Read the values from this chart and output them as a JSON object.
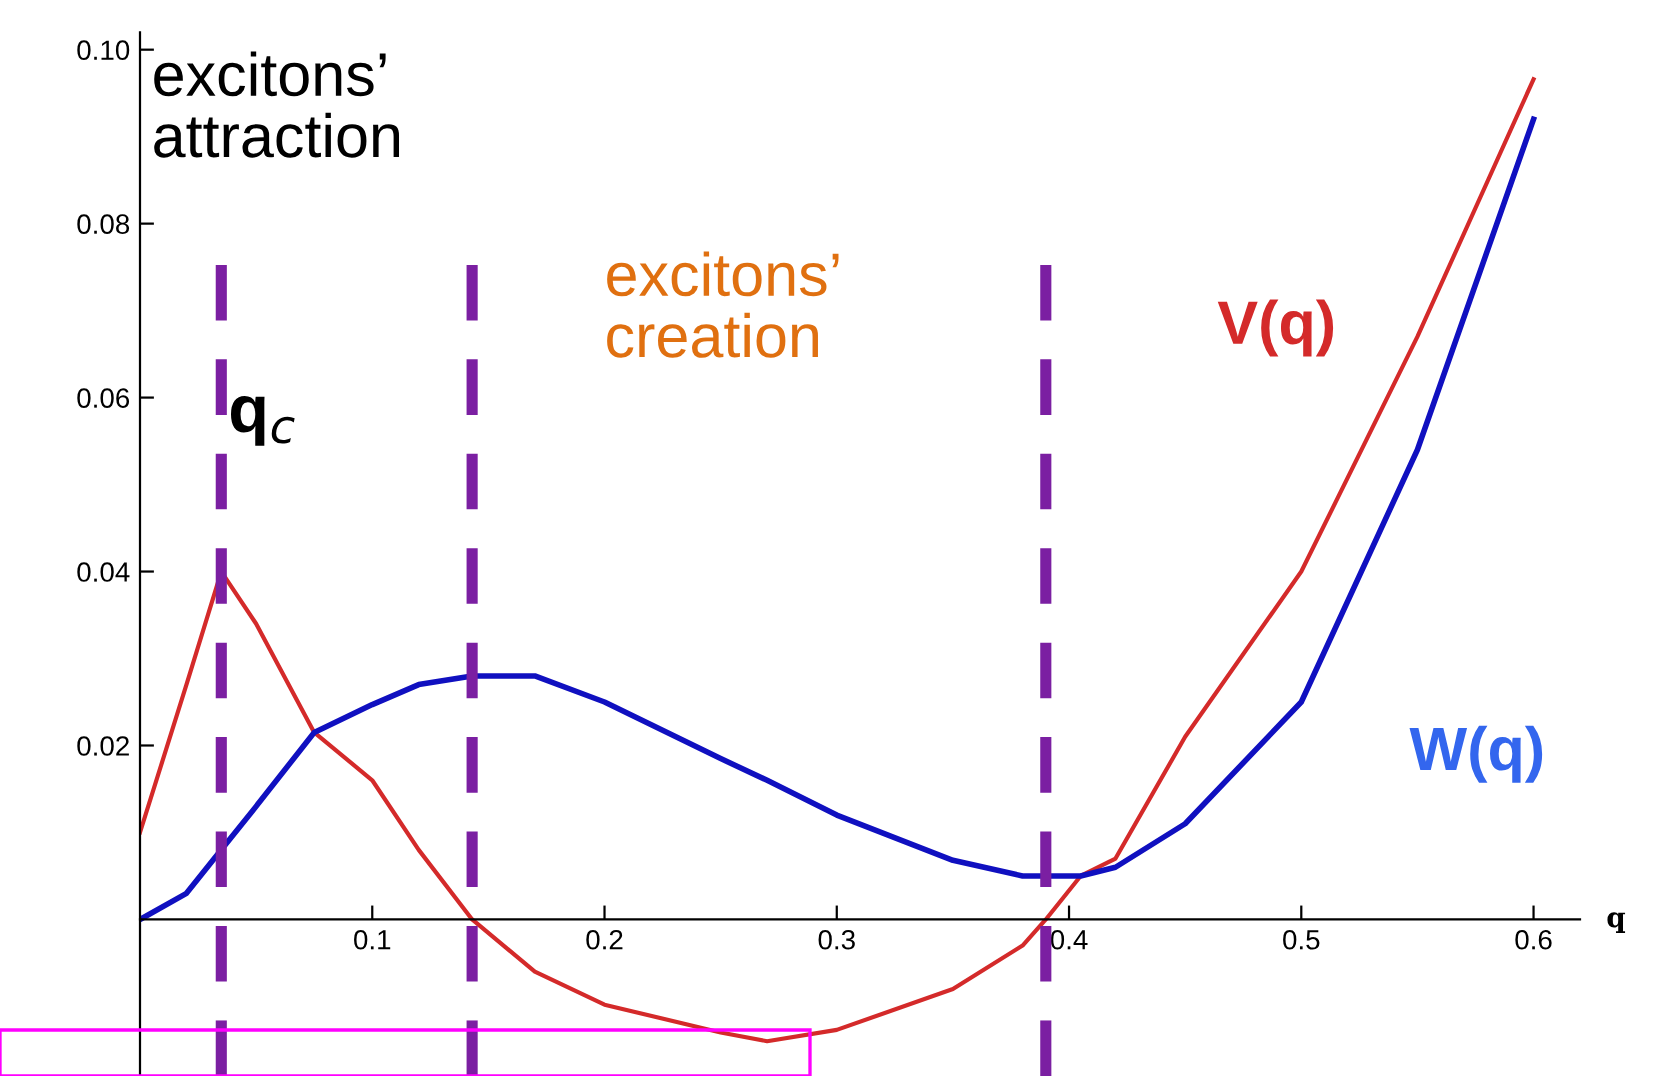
{
  "chart_data": {
    "type": "line",
    "xlabel": "q",
    "x": [
      0,
      0.02,
      0.035,
      0.05,
      0.075,
      0.1,
      0.12,
      0.143,
      0.17,
      0.2,
      0.25,
      0.27,
      0.3,
      0.35,
      0.38,
      0.39,
      0.405,
      0.42,
      0.45,
      0.5,
      0.55,
      0.6
    ],
    "series": [
      {
        "name": "V(q)",
        "color": "#d42a2a",
        "values": [
          0.01,
          0.027,
          0.04,
          0.034,
          0.0215,
          0.016,
          0.008,
          0.0,
          -0.006,
          -0.0098,
          -0.013,
          -0.014,
          -0.0127,
          -0.008,
          -0.003,
          0.0,
          0.005,
          0.007,
          0.021,
          0.04,
          0.067,
          0.0966
        ]
      },
      {
        "name": "W(q)",
        "color": "#1010c0",
        "values": [
          0.0,
          0.003,
          0.008,
          0.013,
          0.0215,
          0.0247,
          0.027,
          0.028,
          0.028,
          0.025,
          0.0185,
          0.016,
          0.012,
          0.0068,
          0.005,
          0.005,
          0.005,
          0.006,
          0.011,
          0.025,
          0.054,
          0.092
        ]
      }
    ],
    "xlim": [
      0,
      0.62
    ],
    "ylim": [
      -0.018,
      0.102
    ],
    "xticks": [
      0.1,
      0.2,
      0.3,
      0.4,
      0.5,
      0.6
    ],
    "yticks": [
      0.02,
      0.04,
      0.06,
      0.08,
      {
        "value": 0.1,
        "label": "0.10"
      }
    ],
    "ref_lines": [
      {
        "axis": "x",
        "value": 0.035,
        "color": "#7b1fa2",
        "line_style": "dashed"
      },
      {
        "axis": "x",
        "value": 0.143,
        "color": "#7b1fa2",
        "line_style": "dashed"
      },
      {
        "axis": "x",
        "value": 0.39,
        "color": "#7b1fa2",
        "line_style": "dashed"
      }
    ],
    "annotations": [
      "excitons’\nattraction",
      "q$_{c}$",
      "excitons’\ncreation"
    ],
    "grid": false,
    "legend": false,
    "line_style": "solid",
    "marker": "none"
  }
}
